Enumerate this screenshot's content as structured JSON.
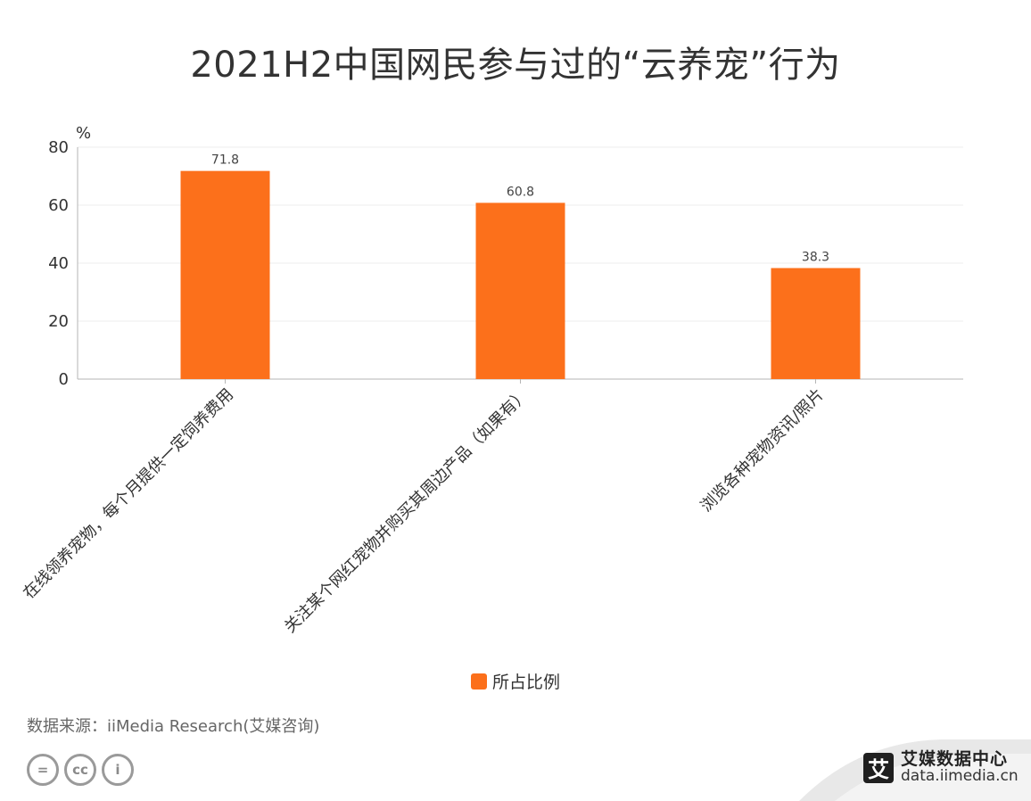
{
  "chart_data": {
    "type": "bar",
    "title": "2021H2中国网民参与过的“云养宠”行为",
    "unit": "%",
    "categories": [
      "在线领养宠物，每个月提供一定饲养费用",
      "关注某个网红宠物并购买其周边产品（如果有）",
      "浏览各种宠物资讯/照片"
    ],
    "series": [
      {
        "name": "所占比例",
        "values": [
          71.8,
          60.8,
          38.3
        ]
      }
    ],
    "ylim": [
      0,
      80
    ],
    "yticks": [
      0,
      20,
      40,
      60,
      80
    ],
    "grid": true,
    "legend_position": "bottom-center"
  },
  "colors": {
    "bar": "#fc701b",
    "grid": "#eeeeee",
    "axis": "#b5b5b5"
  },
  "footer": {
    "source": "数据来源：iiMedia Research(艾媒咨询)",
    "icons": [
      "equals-icon",
      "cc-icon",
      "person-icon"
    ],
    "icon_glyphs": [
      "=",
      "cc",
      "i"
    ],
    "brand_logo": "艾",
    "brand_name": "艾媒数据中心",
    "brand_url": "data.iimedia.cn"
  }
}
